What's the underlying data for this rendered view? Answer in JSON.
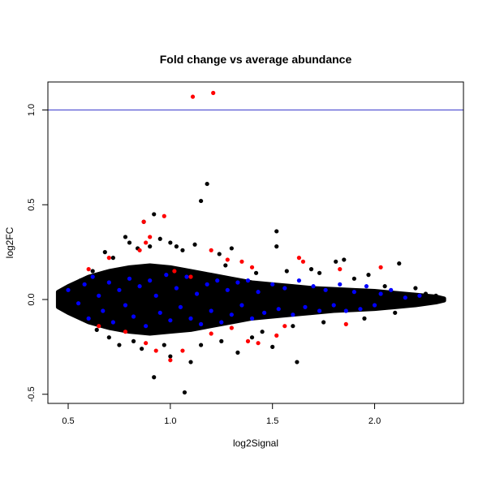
{
  "chart_data": {
    "type": "scatter",
    "title": "Fold change vs average abundance",
    "xlabel": "log2Signal",
    "ylabel": "log2FC",
    "xlim": [
      0.43,
      2.46
    ],
    "ylim": [
      -0.55,
      1.15
    ],
    "xticks": [
      {
        "value": 0.5,
        "label": "0.5"
      },
      {
        "value": 1.0,
        "label": "1.0"
      },
      {
        "value": 1.5,
        "label": "1.5"
      },
      {
        "value": 2.0,
        "label": "2.0"
      }
    ],
    "yticks": [
      {
        "value": -0.5,
        "label": "-0.5"
      },
      {
        "value": 0.0,
        "label": "0.0"
      },
      {
        "value": 0.5,
        "label": "0.5"
      },
      {
        "value": 1.0,
        "label": "1.0"
      }
    ],
    "grid": false,
    "reference_line": {
      "orientation": "horizontal",
      "y": 1.0,
      "color": "#3a3acc"
    },
    "colors": {
      "black": "#000000",
      "blue": "#0000ff",
      "red": "#ff0000"
    },
    "dense_cloud_envelope": {
      "x": [
        0.45,
        0.5,
        0.6,
        0.7,
        0.8,
        0.9,
        1.0,
        1.1,
        1.2,
        1.3,
        1.4,
        1.5,
        1.6,
        1.7,
        1.8,
        1.9,
        2.0,
        2.1,
        2.2,
        2.3,
        2.34
      ],
      "upper": [
        0.04,
        0.07,
        0.12,
        0.15,
        0.17,
        0.18,
        0.17,
        0.15,
        0.13,
        0.11,
        0.09,
        0.08,
        0.07,
        0.06,
        0.055,
        0.05,
        0.045,
        0.035,
        0.025,
        0.015,
        0.005
      ],
      "lower": [
        -0.04,
        -0.07,
        -0.12,
        -0.15,
        -0.17,
        -0.18,
        -0.17,
        -0.16,
        -0.14,
        -0.12,
        -0.1,
        -0.09,
        -0.08,
        -0.07,
        -0.06,
        -0.055,
        -0.05,
        -0.04,
        -0.03,
        -0.015,
        -0.005
      ]
    },
    "series": [
      {
        "name": "black",
        "color": "#000000",
        "points": [
          [
            1.18,
            0.61
          ],
          [
            1.15,
            0.52
          ],
          [
            0.92,
            0.45
          ],
          [
            0.87,
            0.41
          ],
          [
            0.95,
            0.32
          ],
          [
            1.52,
            0.36
          ],
          [
            1.52,
            0.28
          ],
          [
            1.12,
            0.29
          ],
          [
            0.78,
            0.33
          ],
          [
            0.8,
            0.3
          ],
          [
            0.9,
            0.28
          ],
          [
            1.85,
            0.21
          ],
          [
            1.81,
            0.2
          ],
          [
            1.62,
            -0.33
          ],
          [
            1.07,
            -0.49
          ],
          [
            0.92,
            -0.41
          ],
          [
            1.33,
            -0.28
          ],
          [
            1.5,
            -0.25
          ],
          [
            0.75,
            -0.24
          ],
          [
            1.0,
            -0.3
          ],
          [
            1.1,
            -0.33
          ],
          [
            2.12,
            0.19
          ],
          [
            1.97,
            0.13
          ],
          [
            1.0,
            0.3
          ],
          [
            0.68,
            0.25
          ],
          [
            1.24,
            0.24
          ],
          [
            1.3,
            0.27
          ],
          [
            1.03,
            0.28
          ],
          [
            1.06,
            0.26
          ],
          [
            0.84,
            0.27
          ],
          [
            0.72,
            0.22
          ],
          [
            1.27,
            0.18
          ],
          [
            1.42,
            0.14
          ],
          [
            1.57,
            0.15
          ],
          [
            1.69,
            0.16
          ],
          [
            1.73,
            0.14
          ],
          [
            1.9,
            0.11
          ],
          [
            2.05,
            0.07
          ],
          [
            2.2,
            0.06
          ],
          [
            2.25,
            0.03
          ],
          [
            0.56,
            0.1
          ],
          [
            0.62,
            0.15
          ],
          [
            0.64,
            -0.16
          ],
          [
            0.7,
            -0.2
          ],
          [
            0.82,
            -0.22
          ],
          [
            0.86,
            -0.26
          ],
          [
            0.97,
            -0.24
          ],
          [
            1.15,
            -0.24
          ],
          [
            1.25,
            -0.22
          ],
          [
            1.4,
            -0.2
          ],
          [
            1.45,
            -0.17
          ],
          [
            1.6,
            -0.14
          ],
          [
            1.75,
            -0.12
          ],
          [
            1.95,
            -0.1
          ],
          [
            2.1,
            -0.07
          ],
          [
            2.3,
            0.02
          ]
        ]
      },
      {
        "name": "blue",
        "color": "#0000ff",
        "points": [
          [
            0.5,
            0.05
          ],
          [
            0.55,
            -0.02
          ],
          [
            0.58,
            0.08
          ],
          [
            0.6,
            -0.1
          ],
          [
            0.62,
            0.12
          ],
          [
            0.65,
            0.02
          ],
          [
            0.67,
            -0.06
          ],
          [
            0.7,
            0.09
          ],
          [
            0.72,
            -0.12
          ],
          [
            0.75,
            0.05
          ],
          [
            0.78,
            -0.03
          ],
          [
            0.8,
            0.11
          ],
          [
            0.82,
            -0.09
          ],
          [
            0.85,
            0.07
          ],
          [
            0.88,
            -0.14
          ],
          [
            0.9,
            0.1
          ],
          [
            0.93,
            0.02
          ],
          [
            0.95,
            -0.07
          ],
          [
            0.98,
            0.13
          ],
          [
            1.0,
            -0.11
          ],
          [
            1.03,
            0.06
          ],
          [
            1.05,
            -0.04
          ],
          [
            1.08,
            0.12
          ],
          [
            1.1,
            -0.1
          ],
          [
            1.13,
            0.03
          ],
          [
            1.15,
            -0.13
          ],
          [
            1.18,
            0.08
          ],
          [
            1.2,
            -0.06
          ],
          [
            1.23,
            0.1
          ],
          [
            1.25,
            -0.12
          ],
          [
            1.28,
            0.05
          ],
          [
            1.3,
            -0.08
          ],
          [
            1.33,
            0.09
          ],
          [
            1.35,
            -0.03
          ],
          [
            1.38,
            0.1
          ],
          [
            1.4,
            -0.1
          ],
          [
            1.43,
            0.04
          ],
          [
            1.46,
            -0.07
          ],
          [
            1.5,
            0.08
          ],
          [
            1.53,
            -0.05
          ],
          [
            1.56,
            0.06
          ],
          [
            1.6,
            -0.08
          ],
          [
            1.63,
            0.1
          ],
          [
            1.66,
            -0.04
          ],
          [
            1.7,
            0.07
          ],
          [
            1.73,
            -0.06
          ],
          [
            1.76,
            0.05
          ],
          [
            1.8,
            -0.03
          ],
          [
            1.83,
            0.08
          ],
          [
            1.86,
            -0.06
          ],
          [
            1.9,
            0.04
          ],
          [
            1.93,
            -0.05
          ],
          [
            1.96,
            0.07
          ],
          [
            2.0,
            -0.03
          ],
          [
            2.03,
            0.03
          ],
          [
            2.08,
            0.05
          ],
          [
            2.15,
            0.01
          ],
          [
            2.22,
            0.02
          ]
        ]
      },
      {
        "name": "red",
        "color": "#ff0000",
        "points": [
          [
            1.11,
            1.07
          ],
          [
            1.21,
            1.09
          ],
          [
            0.87,
            0.41
          ],
          [
            0.97,
            0.44
          ],
          [
            0.9,
            0.33
          ],
          [
            0.88,
            0.3
          ],
          [
            0.85,
            0.26
          ],
          [
            0.6,
            0.16
          ],
          [
            0.7,
            0.22
          ],
          [
            1.28,
            0.21
          ],
          [
            1.35,
            0.2
          ],
          [
            1.4,
            0.17
          ],
          [
            1.63,
            0.22
          ],
          [
            1.65,
            0.2
          ],
          [
            1.83,
            0.16
          ],
          [
            2.03,
            0.17
          ],
          [
            1.2,
            0.26
          ],
          [
            1.02,
            0.15
          ],
          [
            1.1,
            0.12
          ],
          [
            0.78,
            -0.17
          ],
          [
            0.93,
            -0.27
          ],
          [
            1.0,
            -0.32
          ],
          [
            1.06,
            -0.27
          ],
          [
            1.2,
            -0.18
          ],
          [
            1.38,
            -0.22
          ],
          [
            1.43,
            -0.23
          ],
          [
            1.52,
            -0.19
          ],
          [
            1.86,
            -0.13
          ],
          [
            0.88,
            -0.23
          ],
          [
            0.65,
            -0.14
          ],
          [
            1.3,
            -0.15
          ],
          [
            1.56,
            -0.14
          ]
        ]
      }
    ]
  }
}
